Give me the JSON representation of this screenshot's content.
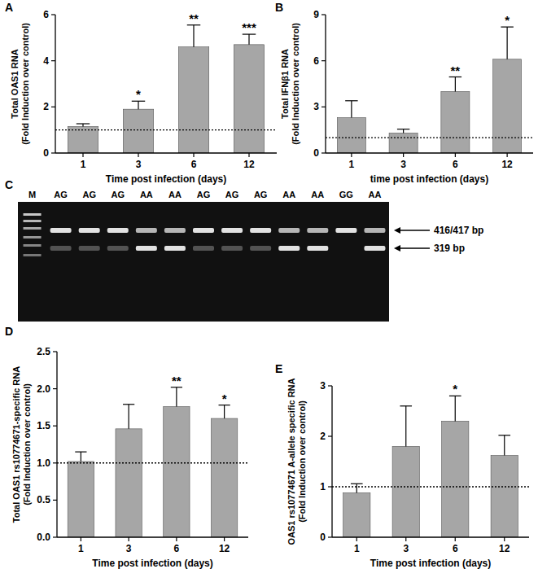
{
  "chart_data": [
    {
      "type": "bar",
      "title": "A",
      "categories": [
        "1",
        "3",
        "6",
        "12"
      ],
      "values": [
        1.15,
        1.9,
        4.6,
        4.7
      ],
      "errors": [
        0.12,
        0.35,
        0.95,
        0.45
      ],
      "annotations": [
        null,
        "*",
        "**",
        "***"
      ],
      "reference_line": 1,
      "color": "#a6a6a6",
      "xlabel": "Time post infection (days)",
      "ylabel": [
        "Total OAS1 RNA",
        "(Fold Induction over control)"
      ],
      "ylim": [
        0,
        6
      ],
      "yticks": [
        0,
        2,
        4,
        6
      ]
    },
    {
      "type": "bar",
      "title": "B",
      "categories": [
        "1",
        "3",
        "6",
        "12"
      ],
      "values": [
        2.3,
        1.3,
        4.0,
        6.1
      ],
      "errors": [
        1.1,
        0.25,
        0.95,
        2.1
      ],
      "annotations": [
        null,
        null,
        "**",
        "*"
      ],
      "reference_line": 1,
      "color": "#a6a6a6",
      "xlabel": "time post infection  (days)",
      "ylabel": [
        "Total IFNβ1 RNA",
        "(Fold Induction over control)"
      ],
      "ylim": [
        0,
        9
      ],
      "yticks": [
        0,
        3,
        6,
        9
      ]
    },
    {
      "type": "bar",
      "title": "D",
      "categories": [
        "1",
        "3",
        "6",
        "12"
      ],
      "values": [
        1.02,
        1.46,
        1.76,
        1.6
      ],
      "errors": [
        0.13,
        0.33,
        0.26,
        0.18
      ],
      "annotations": [
        null,
        null,
        "**",
        "*"
      ],
      "reference_line": 1,
      "color": "#a6a6a6",
      "xlabel": "Time post infection (days)",
      "ylabel": [
        "Total OAS1 rs10774671-specific RNA",
        "(Fold Induction over control)"
      ],
      "ylim": [
        0,
        2.5
      ],
      "yticks": [
        {
          "value": 0,
          "label": "0.0"
        },
        0.5,
        {
          "value": 1,
          "label": "1.0"
        },
        1.5,
        {
          "value": 2,
          "label": "2.0"
        },
        2.5
      ]
    },
    {
      "type": "bar",
      "title": "E",
      "categories": [
        "1",
        "3",
        "6",
        "12"
      ],
      "values": [
        0.88,
        1.8,
        2.3,
        1.62
      ],
      "errors": [
        0.18,
        0.8,
        0.5,
        0.4
      ],
      "annotations": [
        null,
        null,
        "*",
        null
      ],
      "reference_line": 1,
      "color": "#a6a6a6",
      "xlabel": "Time post infection (days)",
      "ylabel": [
        "OAS1 rs10774671 A-allele specific RNA",
        "(Fold Induction over control)"
      ],
      "ylim": [
        0,
        3
      ],
      "yticks": [
        0,
        1,
        2,
        3
      ]
    }
  ],
  "gel": {
    "title": "C",
    "marker": "M",
    "lanes": [
      "AG",
      "AG",
      "AG",
      "AA",
      "AA",
      "AG",
      "AG",
      "AG",
      "AA",
      "AA",
      "GG",
      "AA"
    ],
    "bands": [
      "416/417 bp",
      "319 bp"
    ]
  }
}
